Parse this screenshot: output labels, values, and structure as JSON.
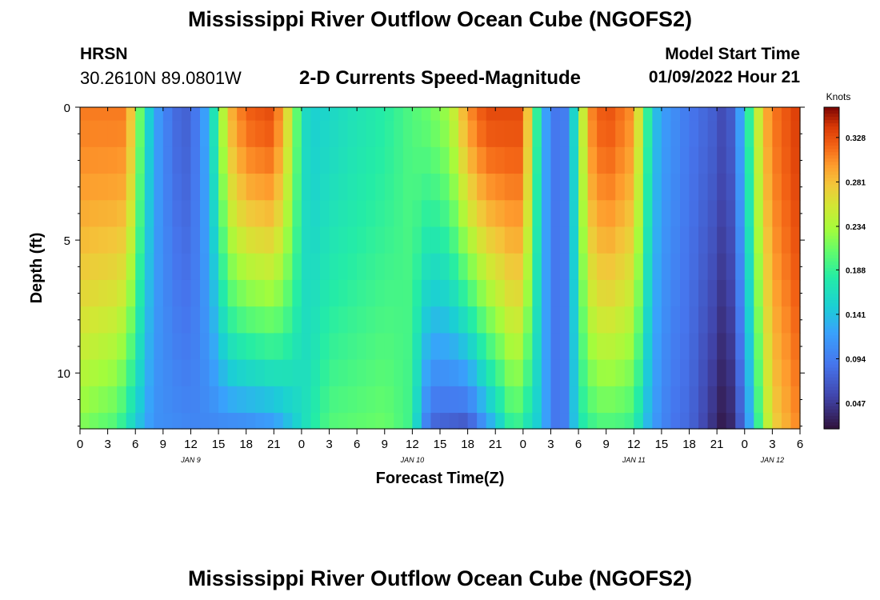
{
  "header": {
    "title": "Mississippi River Outflow Ocean Cube (NGOFS2)",
    "station": "HRSN",
    "coords": "30.2610N  89.0801W",
    "subtitle": "2-D Currents Speed-Magnitude",
    "model_label": "Model Start Time",
    "model_time": "01/09/2022 Hour 21"
  },
  "footer": {
    "title": "Mississippi River Outflow Ocean Cube (NGOFS2)"
  },
  "chart_data": {
    "type": "heatmap",
    "title": "2-D Currents Speed-Magnitude",
    "xlabel": "Forecast Time(Z)",
    "ylabel": "Depth (ft)",
    "x_unit": "hours from 00Z Jan 9",
    "xlim": [
      0,
      78
    ],
    "ylim": [
      0,
      12.1
    ],
    "y_ticks": [
      "0",
      "5",
      "10"
    ],
    "y_tick_values": [
      0,
      5,
      10
    ],
    "x_tick_labels": [
      "0",
      "3",
      "6",
      "9",
      "12",
      "15",
      "18",
      "21",
      "0",
      "3",
      "6",
      "9",
      "12",
      "15",
      "18",
      "21",
      "0",
      "3",
      "6",
      "9",
      "12",
      "15",
      "18",
      "21",
      "0",
      "3",
      "6"
    ],
    "date_labels": [
      {
        "label": "JAN 9",
        "hour": 12
      },
      {
        "label": "JAN 10",
        "hour": 36
      },
      {
        "label": "JAN 11",
        "hour": 60
      },
      {
        "label": "JAN 12",
        "hour": 75
      }
    ],
    "colorbar": {
      "unit": "Knots",
      "ticks": [
        "0.328",
        "0.281",
        "0.234",
        "0.188",
        "0.141",
        "0.094",
        "0.047"
      ],
      "tick_values": [
        0.328,
        0.281,
        0.234,
        0.188,
        0.141,
        0.094,
        0.047
      ],
      "range": [
        0.02,
        0.36
      ]
    },
    "depth_levels": [
      0,
      1,
      2,
      3,
      4,
      5,
      6,
      7,
      8,
      9,
      10,
      11,
      12
    ],
    "hour_step": 1,
    "surface_speed_knots": [
      [
        0,
        0.31
      ],
      [
        5,
        0.31
      ],
      [
        6,
        0.25
      ],
      [
        7,
        0.17
      ],
      [
        8,
        0.13
      ],
      [
        9,
        0.1
      ],
      [
        10,
        0.09
      ],
      [
        11,
        0.07
      ],
      [
        12,
        0.08
      ],
      [
        13,
        0.1
      ],
      [
        14,
        0.14
      ],
      [
        15,
        0.2
      ],
      [
        16,
        0.28
      ],
      [
        18,
        0.32
      ],
      [
        21,
        0.33
      ],
      [
        23,
        0.24
      ],
      [
        24,
        0.17
      ],
      [
        25,
        0.15
      ],
      [
        30,
        0.17
      ],
      [
        33,
        0.18
      ],
      [
        36,
        0.2
      ],
      [
        38,
        0.21
      ],
      [
        40,
        0.23
      ],
      [
        42,
        0.3
      ],
      [
        44,
        0.33
      ],
      [
        48,
        0.33
      ],
      [
        49,
        0.23
      ],
      [
        50,
        0.14
      ],
      [
        51,
        0.1
      ],
      [
        52,
        0.08
      ],
      [
        53,
        0.11
      ],
      [
        54,
        0.2
      ],
      [
        55,
        0.3
      ],
      [
        57,
        0.33
      ],
      [
        60,
        0.3
      ],
      [
        61,
        0.22
      ],
      [
        62,
        0.15
      ],
      [
        63,
        0.12
      ],
      [
        66,
        0.09
      ],
      [
        69,
        0.07
      ],
      [
        70,
        0.05
      ],
      [
        71,
        0.09
      ],
      [
        72,
        0.15
      ],
      [
        73,
        0.22
      ],
      [
        74,
        0.28
      ],
      [
        75,
        0.31
      ],
      [
        78,
        0.34
      ]
    ],
    "bottom_speed_knots": [
      [
        0,
        0.22
      ],
      [
        4,
        0.2
      ],
      [
        6,
        0.15
      ],
      [
        8,
        0.11
      ],
      [
        12,
        0.1
      ],
      [
        18,
        0.11
      ],
      [
        21,
        0.12
      ],
      [
        24,
        0.16
      ],
      [
        27,
        0.2
      ],
      [
        33,
        0.21
      ],
      [
        36,
        0.19
      ],
      [
        37,
        0.12
      ],
      [
        38,
        0.08
      ],
      [
        42,
        0.07
      ],
      [
        44,
        0.12
      ],
      [
        46,
        0.17
      ],
      [
        47,
        0.2
      ],
      [
        48,
        0.18
      ],
      [
        50,
        0.14
      ],
      [
        51,
        0.1
      ],
      [
        52,
        0.08
      ],
      [
        53,
        0.11
      ],
      [
        54,
        0.17
      ],
      [
        56,
        0.2
      ],
      [
        58,
        0.2
      ],
      [
        60,
        0.19
      ],
      [
        61,
        0.15
      ],
      [
        62,
        0.12
      ],
      [
        64,
        0.09
      ],
      [
        66,
        0.08
      ],
      [
        68,
        0.05
      ],
      [
        70,
        0.02
      ],
      [
        71,
        0.05
      ],
      [
        72,
        0.09
      ],
      [
        73,
        0.16
      ],
      [
        74,
        0.22
      ],
      [
        75,
        0.27
      ],
      [
        78,
        0.31
      ]
    ]
  }
}
